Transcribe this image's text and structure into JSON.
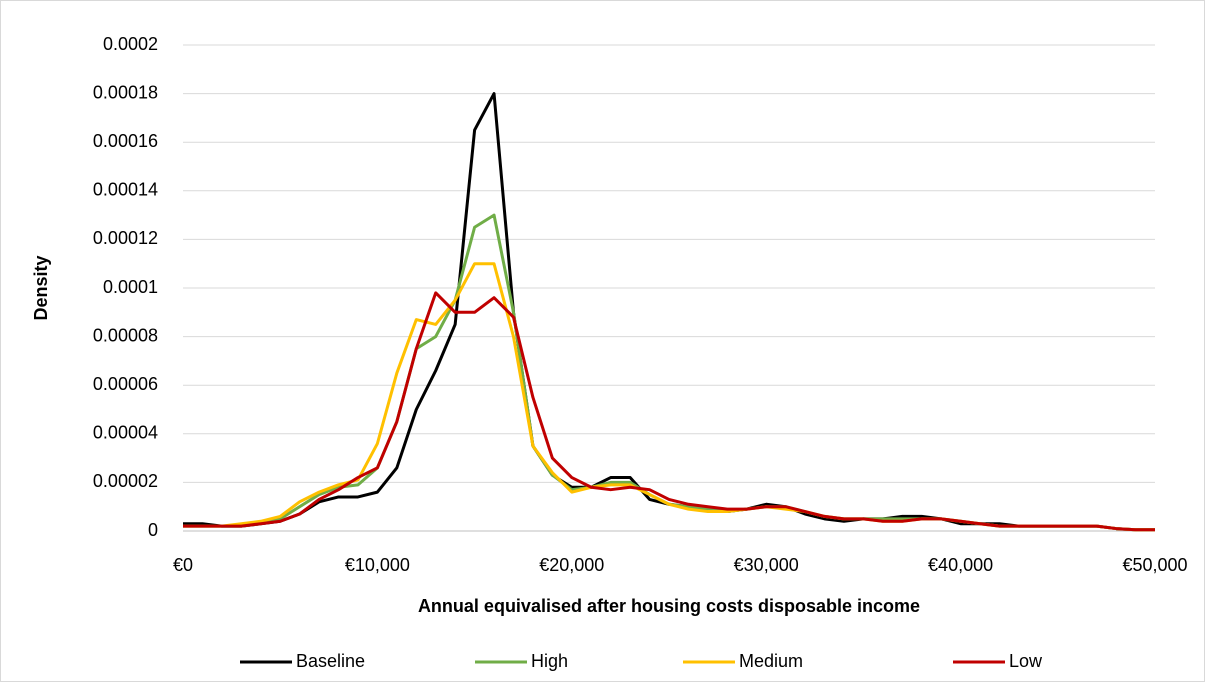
{
  "chart_data": {
    "type": "line",
    "x_label": "Annual equivalised after housing costs disposable income",
    "y_label": "Density",
    "x": [
      0,
      1000,
      2000,
      3000,
      4000,
      5000,
      6000,
      7000,
      8000,
      9000,
      10000,
      11000,
      12000,
      13000,
      14000,
      15000,
      16000,
      17000,
      18000,
      19000,
      20000,
      21000,
      22000,
      23000,
      24000,
      25000,
      26000,
      27000,
      28000,
      29000,
      30000,
      31000,
      32000,
      33000,
      34000,
      35000,
      36000,
      37000,
      38000,
      39000,
      40000,
      41000,
      42000,
      43000,
      44000,
      45000,
      46000,
      47000,
      48000,
      49000,
      50000
    ],
    "series": [
      {
        "name": "Baseline",
        "color": "#000000",
        "values": [
          3e-06,
          3e-06,
          2e-06,
          2e-06,
          3e-06,
          4e-06,
          7e-06,
          1.2e-05,
          1.4e-05,
          1.4e-05,
          1.6e-05,
          2.6e-05,
          5e-05,
          6.6e-05,
          8.5e-05,
          0.000165,
          0.00018,
          9e-05,
          3.5e-05,
          2.3e-05,
          1.8e-05,
          1.8e-05,
          2.2e-05,
          2.2e-05,
          1.3e-05,
          1.1e-05,
          1e-05,
          9e-06,
          8e-06,
          9e-06,
          1.1e-05,
          1e-05,
          7e-06,
          5e-06,
          4e-06,
          5e-06,
          5e-06,
          6e-06,
          6e-06,
          5e-06,
          3e-06,
          3e-06,
          3e-06,
          2e-06,
          2e-06,
          2e-06,
          2e-06,
          2e-06,
          1e-06,
          5e-07,
          5e-07
        ]
      },
      {
        "name": "High",
        "color": "#70ad47",
        "values": [
          2e-06,
          2e-06,
          2e-06,
          2e-06,
          3e-06,
          5e-06,
          1e-05,
          1.5e-05,
          1.8e-05,
          1.9e-05,
          2.6e-05,
          4.5e-05,
          7.5e-05,
          8e-05,
          9.5e-05,
          0.000125,
          0.00013,
          9e-05,
          3.5e-05,
          2.3e-05,
          1.7e-05,
          1.8e-05,
          2e-05,
          2e-05,
          1.5e-05,
          1.1e-05,
          1e-05,
          9e-06,
          8e-06,
          9e-06,
          1e-05,
          1e-05,
          8e-06,
          6e-06,
          5e-06,
          5e-06,
          5e-06,
          5e-06,
          5e-06,
          5e-06,
          4e-06,
          3e-06,
          2e-06,
          2e-06,
          2e-06,
          2e-06,
          2e-06,
          2e-06,
          1e-06,
          5e-07,
          5e-07
        ]
      },
      {
        "name": "Medium",
        "color": "#ffc000",
        "values": [
          2e-06,
          2e-06,
          2e-06,
          3e-06,
          4e-06,
          6e-06,
          1.2e-05,
          1.6e-05,
          1.9e-05,
          2.1e-05,
          3.6e-05,
          6.5e-05,
          8.7e-05,
          8.5e-05,
          9.5e-05,
          0.00011,
          0.00011,
          8e-05,
          3.5e-05,
          2.4e-05,
          1.6e-05,
          1.8e-05,
          1.9e-05,
          1.9e-05,
          1.5e-05,
          1.1e-05,
          9e-06,
          8e-06,
          8e-06,
          9e-06,
          1e-05,
          9e-06,
          8e-06,
          6e-06,
          5e-06,
          5e-06,
          4e-06,
          4e-06,
          5e-06,
          5e-06,
          4e-06,
          3e-06,
          2e-06,
          2e-06,
          2e-06,
          2e-06,
          2e-06,
          2e-06,
          1e-06,
          5e-07,
          5e-07
        ]
      },
      {
        "name": "Low",
        "color": "#c00000",
        "values": [
          2e-06,
          2e-06,
          2e-06,
          2e-06,
          3e-06,
          4e-06,
          7e-06,
          1.3e-05,
          1.7e-05,
          2.2e-05,
          2.6e-05,
          4.5e-05,
          7.5e-05,
          9.8e-05,
          9e-05,
          9e-05,
          9.6e-05,
          8.8e-05,
          5.5e-05,
          3e-05,
          2.2e-05,
          1.8e-05,
          1.7e-05,
          1.8e-05,
          1.7e-05,
          1.3e-05,
          1.1e-05,
          1e-05,
          9e-06,
          9e-06,
          1e-05,
          1e-05,
          8e-06,
          6e-06,
          5e-06,
          5e-06,
          4e-06,
          4e-06,
          5e-06,
          5e-06,
          4e-06,
          3e-06,
          2e-06,
          2e-06,
          2e-06,
          2e-06,
          2e-06,
          2e-06,
          1e-06,
          5e-07,
          5e-07
        ]
      }
    ],
    "xlim": [
      0,
      50000
    ],
    "xticks": [
      {
        "value": 0,
        "label": "€0"
      },
      {
        "value": 10000,
        "label": "€10,000"
      },
      {
        "value": 20000,
        "label": "€20,000"
      },
      {
        "value": 30000,
        "label": "€30,000"
      },
      {
        "value": 40000,
        "label": "€40,000"
      },
      {
        "value": 50000,
        "label": "€50,000"
      }
    ],
    "ylim": [
      0,
      0.0002
    ],
    "yticks": [
      0,
      2e-05,
      4e-05,
      6e-05,
      8e-05,
      0.0001,
      0.00012,
      0.00014,
      0.00016,
      0.00018,
      0.0002
    ],
    "grid": true,
    "legend": "bottom"
  }
}
